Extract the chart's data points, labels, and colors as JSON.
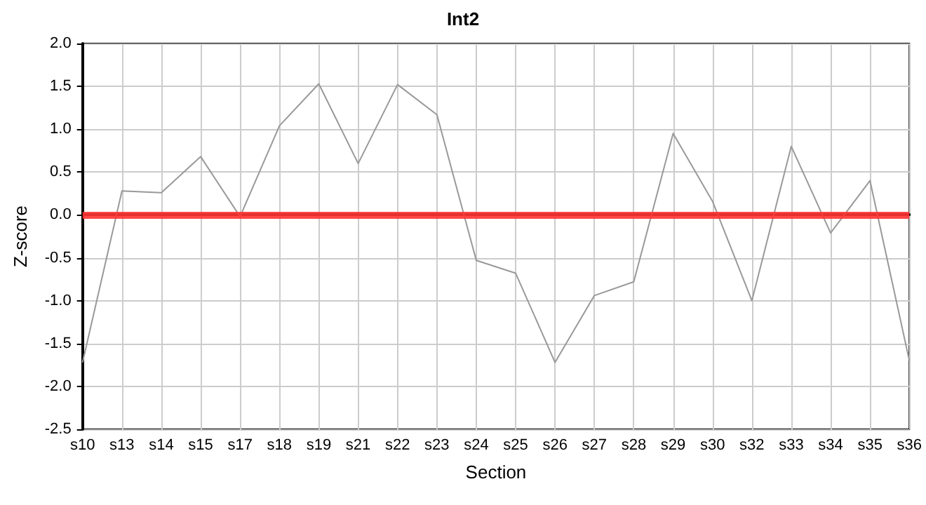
{
  "chart_data": {
    "type": "line",
    "title": "Int2",
    "xlabel": "Section",
    "ylabel": "Z-score",
    "categories": [
      "s10",
      "s13",
      "s14",
      "s15",
      "s17",
      "s18",
      "s19",
      "s21",
      "s22",
      "s23",
      "s24",
      "s25",
      "s26",
      "s27",
      "s28",
      "s29",
      "s30",
      "s32",
      "s33",
      "s34",
      "s35",
      "s36"
    ],
    "series": [
      {
        "color": "#999999",
        "values": [
          -1.72,
          0.28,
          0.26,
          0.68,
          -0.02,
          1.04,
          1.53,
          0.6,
          1.52,
          1.17,
          -0.53,
          -0.68,
          -1.72,
          -0.94,
          -0.78,
          0.95,
          0.16,
          -1.0,
          0.8,
          -0.21,
          0.4,
          -1.7
        ]
      }
    ],
    "ylim": [
      -2.5,
      2.0
    ],
    "yticks": [
      {
        "value": -2.5,
        "label": "-2.5"
      },
      {
        "value": -2,
        "label": "-2.0"
      },
      {
        "value": -1.5,
        "label": "-1.5"
      },
      {
        "value": -1,
        "label": "-1.0"
      },
      {
        "value": -0.5,
        "label": "-0.5"
      },
      {
        "value": 0,
        "label": "0.0"
      },
      {
        "value": 0.5,
        "label": "0.5"
      },
      {
        "value": 1,
        "label": "1.0"
      },
      {
        "value": 1.5,
        "label": "1.5"
      },
      {
        "value": 2,
        "label": "2.0"
      }
    ],
    "ref_lines": [
      {
        "axis": "y",
        "value": 0,
        "color": "#ff3333"
      }
    ],
    "grid": true,
    "marker": "none",
    "line_style": "solid"
  }
}
